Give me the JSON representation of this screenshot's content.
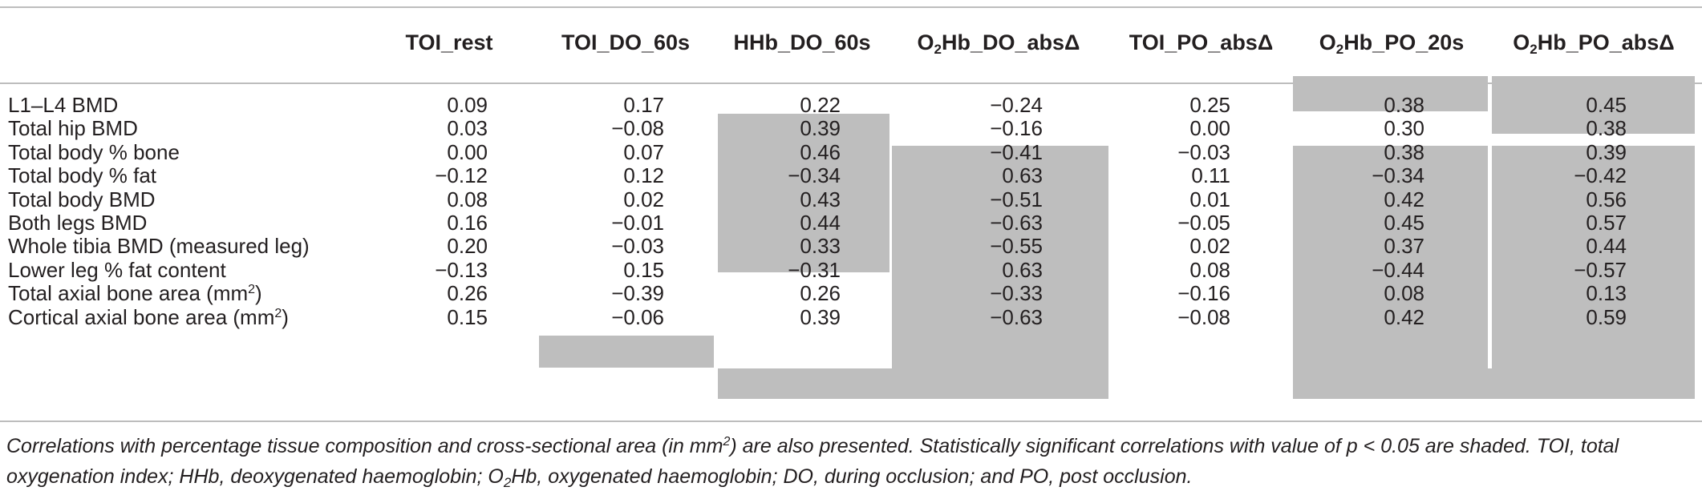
{
  "columns": [
    {
      "pre": "TOI_rest",
      "sub": "",
      "post": ""
    },
    {
      "pre": "TOI_DO_60s",
      "sub": "",
      "post": ""
    },
    {
      "pre": "HHb_DO_60s",
      "sub": "",
      "post": ""
    },
    {
      "pre": "O",
      "sub": "2",
      "post": "Hb_DO_absΔ"
    },
    {
      "pre": "TOI_PO_absΔ",
      "sub": "",
      "post": ""
    },
    {
      "pre": "O",
      "sub": "2",
      "post": "Hb_PO_20s"
    },
    {
      "pre": "O",
      "sub": "2",
      "post": "Hb_PO_absΔ"
    }
  ],
  "rows": [
    {
      "label": "L1–L4 BMD",
      "label_sup": "",
      "label_end": "",
      "values": [
        "0.09",
        "0.17",
        "0.22",
        "−0.24",
        "0.25",
        "0.38",
        "0.45"
      ]
    },
    {
      "label": "Total hip BMD",
      "label_sup": "",
      "label_end": "",
      "values": [
        "0.03",
        "−0.08",
        "0.39",
        "−0.16",
        "0.00",
        "0.30",
        "0.38"
      ]
    },
    {
      "label": "Total body % bone",
      "label_sup": "",
      "label_end": "",
      "values": [
        "0.00",
        "0.07",
        "0.46",
        "−0.41",
        "−0.03",
        "0.38",
        "0.39"
      ]
    },
    {
      "label": "Total body % fat",
      "label_sup": "",
      "label_end": "",
      "values": [
        "−0.12",
        "0.12",
        "−0.34",
        "0.63",
        "0.11",
        "−0.34",
        "−0.42"
      ]
    },
    {
      "label": "Total body BMD",
      "label_sup": "",
      "label_end": "",
      "values": [
        "0.08",
        "0.02",
        "0.43",
        "−0.51",
        "0.01",
        "0.42",
        "0.56"
      ]
    },
    {
      "label": "Both legs BMD",
      "label_sup": "",
      "label_end": "",
      "values": [
        "0.16",
        "−0.01",
        "0.44",
        "−0.63",
        "−0.05",
        "0.45",
        "0.57"
      ]
    },
    {
      "label": "Whole tibia BMD (measured leg)",
      "label_sup": "",
      "label_end": "",
      "values": [
        "0.20",
        "−0.03",
        "0.33",
        "−0.55",
        "0.02",
        "0.37",
        "0.44"
      ]
    },
    {
      "label": "Lower leg % fat content",
      "label_sup": "",
      "label_end": "",
      "values": [
        "−0.13",
        "0.15",
        "−0.31",
        "0.63",
        "0.08",
        "−0.44",
        "−0.57"
      ]
    },
    {
      "label": "Total axial bone area (mm",
      "label_sup": "2",
      "label_end": ")",
      "values": [
        "0.26",
        "−0.39",
        "0.26",
        "−0.33",
        "−0.16",
        "0.08",
        "0.13"
      ]
    },
    {
      "label": "Cortical axial bone area (mm",
      "label_sup": "2",
      "label_end": ")",
      "values": [
        "0.15",
        "−0.06",
        "0.39",
        "−0.63",
        "−0.08",
        "0.42",
        "0.59"
      ]
    }
  ],
  "footnote": {
    "p1": "Correlations with percentage tissue composition and cross-sectional area (in mm",
    "p1_sup": "2",
    "p2": ") are also presented. Statistically significant correlations with value of p < 0.05 are shaded. TOI, total oxygenation index; HHb, deoxygenated haemoglobin; O",
    "p2_sub": "2",
    "p3": "Hb, oxygenated haemoglobin; DO, during occlusion; and PO, post occlusion."
  }
}
